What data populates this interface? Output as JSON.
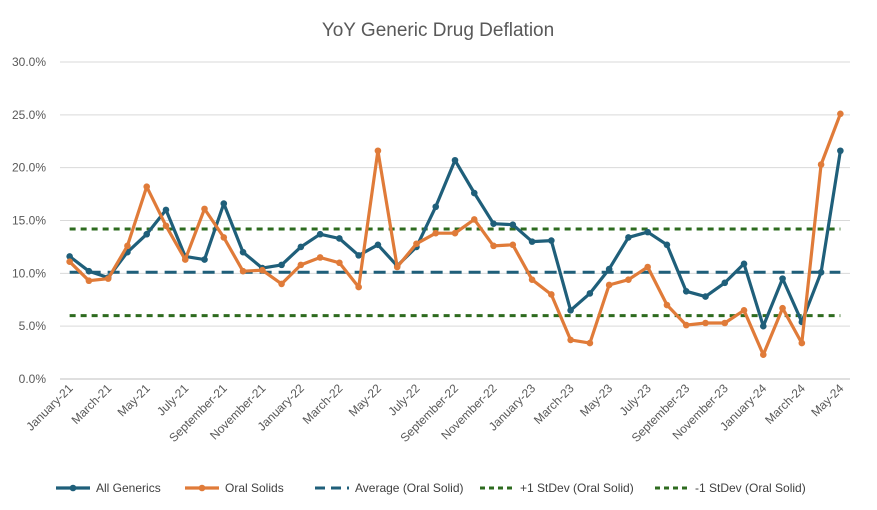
{
  "chart_data": {
    "type": "line",
    "title": "YoY Generic Drug Deflation",
    "xlabel": "",
    "ylabel": "",
    "ylim": [
      0,
      30
    ],
    "yticks": [
      0,
      5,
      10,
      15,
      20,
      25,
      30
    ],
    "ytick_labels": [
      "0.0%",
      "5.0%",
      "10.0%",
      "15.0%",
      "20.0%",
      "25.0%",
      "30.0%"
    ],
    "categories": [
      "January-21",
      "February-21",
      "March-21",
      "April-21",
      "May-21",
      "June-21",
      "July-21",
      "August-21",
      "September-21",
      "October-21",
      "November-21",
      "December-21",
      "January-22",
      "February-22",
      "March-22",
      "April-22",
      "May-22",
      "June-22",
      "July-22",
      "August-22",
      "September-22",
      "October-22",
      "November-22",
      "December-22",
      "January-23",
      "February-23",
      "March-23",
      "April-23",
      "May-23",
      "June-23",
      "July-23",
      "August-23",
      "September-23",
      "October-23",
      "November-23",
      "December-23",
      "January-24",
      "February-24",
      "March-24",
      "April-24",
      "May-24"
    ],
    "tick_labels": [
      "January-21",
      "March-21",
      "May-21",
      "July-21",
      "September-21",
      "November-21",
      "January-22",
      "March-22",
      "May-22",
      "July-22",
      "September-22",
      "November-22",
      "January-23",
      "March-23",
      "May-23",
      "July-23",
      "September-23",
      "November-23",
      "January-24",
      "March-24",
      "May-24"
    ],
    "series": [
      {
        "name": "All Generics",
        "color": "#1f5f7a",
        "values": [
          11.6,
          10.2,
          9.6,
          12.0,
          13.7,
          16.0,
          11.6,
          11.3,
          16.6,
          12.0,
          10.5,
          10.8,
          12.5,
          13.7,
          13.3,
          11.7,
          12.7,
          10.7,
          12.5,
          16.3,
          20.7,
          17.6,
          14.7,
          14.6,
          13.0,
          13.1,
          6.5,
          8.1,
          10.4,
          13.4,
          13.9,
          12.7,
          8.3,
          7.8,
          9.1,
          10.9,
          5.0,
          9.5,
          5.4,
          10.1,
          21.6
        ]
      },
      {
        "name": "Oral Solids",
        "color": "#e07b39",
        "values": [
          11.1,
          9.3,
          9.5,
          12.6,
          18.2,
          14.5,
          11.3,
          16.1,
          13.4,
          10.2,
          10.3,
          9.0,
          10.8,
          11.5,
          11.0,
          8.7,
          21.6,
          10.6,
          12.8,
          13.8,
          13.8,
          15.1,
          12.6,
          12.7,
          9.4,
          8.0,
          3.7,
          3.4,
          8.9,
          9.4,
          10.6,
          7.0,
          5.1,
          5.3,
          5.3,
          6.5,
          2.3,
          6.7,
          3.4,
          20.3,
          25.1
        ]
      }
    ],
    "reference_lines": [
      {
        "name": "Average (Oral Solid)",
        "value": 10.1,
        "color": "#1f5f7a",
        "style": "dashed"
      },
      {
        "name": "+1 StDev (Oral Solid)",
        "value": 14.2,
        "color": "#2e6b1f",
        "style": "dotted"
      },
      {
        "name": "-1 StDev (Oral Solid)",
        "value": 6.0,
        "color": "#2e6b1f",
        "style": "dotted"
      }
    ],
    "grid": true,
    "legend_position": "bottom"
  }
}
